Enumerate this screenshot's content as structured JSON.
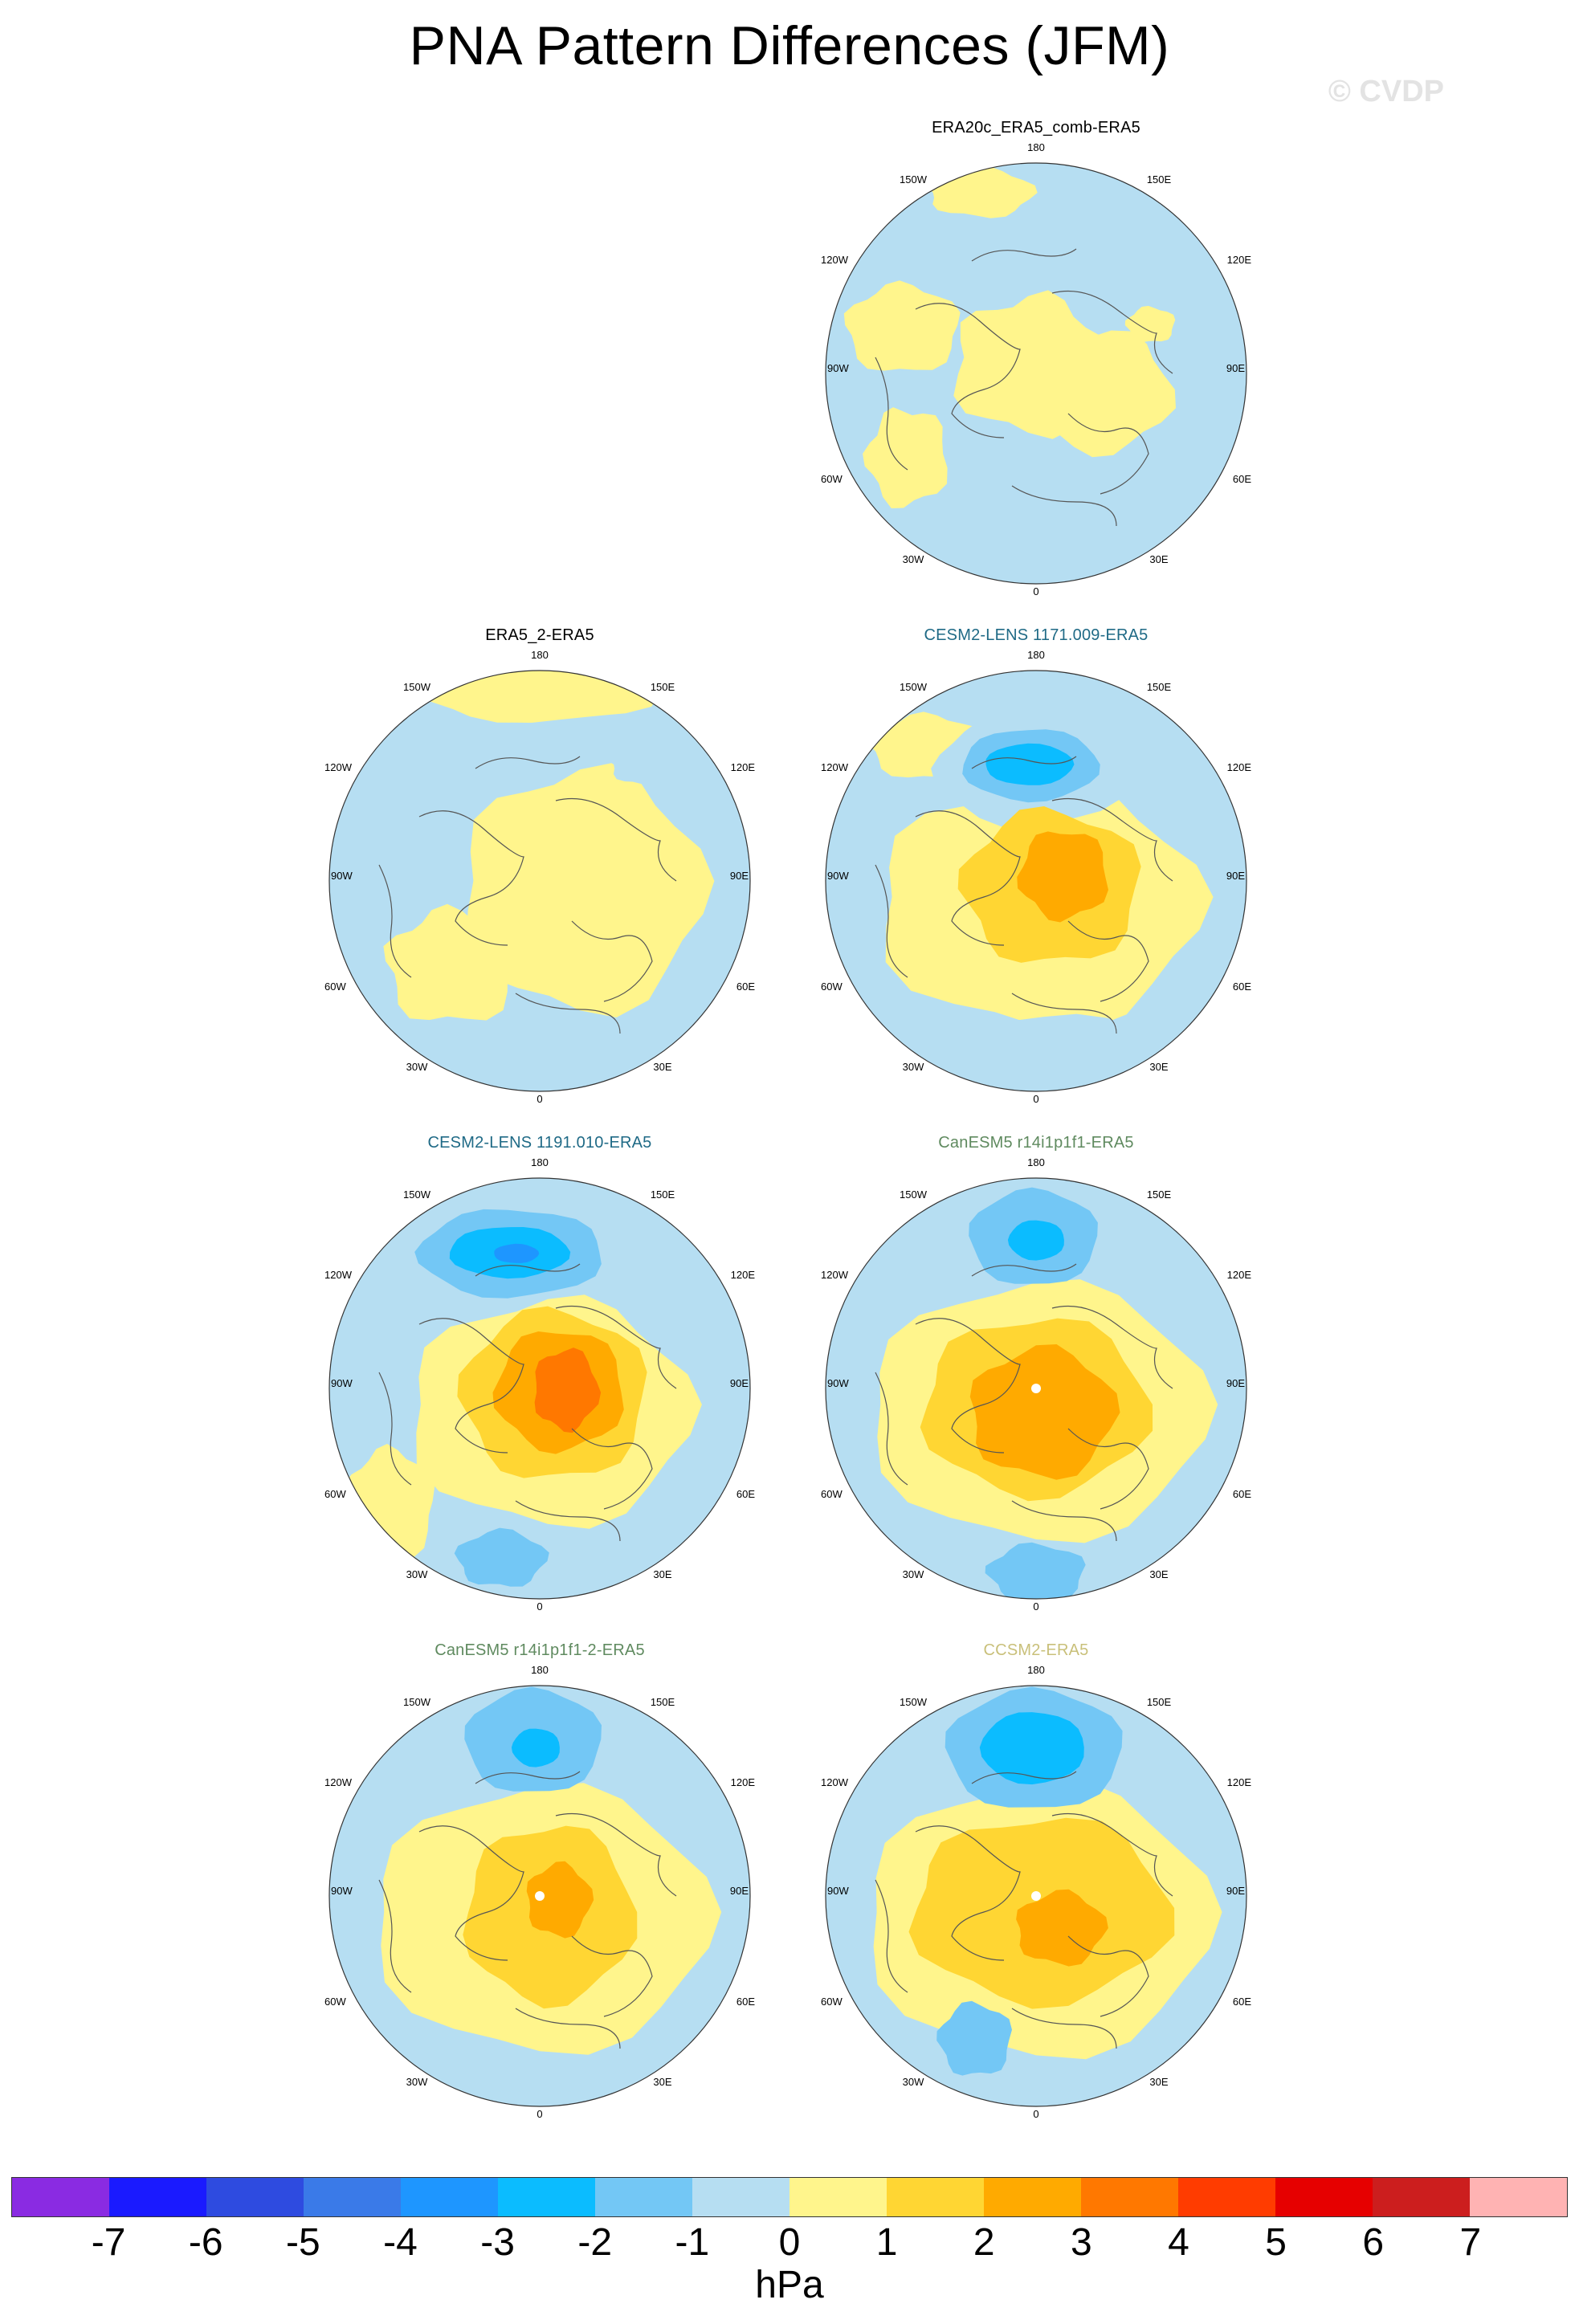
{
  "title": "PNA Pattern Differences (JFM)",
  "watermark": "© CVDP",
  "map_labels": {
    "top": "180",
    "bottom": "0",
    "upper_left": "150W",
    "upper_right": "150E",
    "mid_left_upper": "120W",
    "mid_right_upper": "120E",
    "left": "90W",
    "right": "90E",
    "mid_left_lower": "60W",
    "mid_right_lower": "60E",
    "lower_left": "30W",
    "lower_right": "30E"
  },
  "panels": [
    {
      "id": "p1",
      "title": "ERA20c_ERA5_comb-ERA5",
      "title_color": "#000000"
    },
    {
      "id": "p2",
      "title": "ERA5_2-ERA5",
      "title_color": "#000000"
    },
    {
      "id": "p3",
      "title": "CESM2-LENS 1171.009-ERA5",
      "title_color": "#1f6a86"
    },
    {
      "id": "p4",
      "title": "CESM2-LENS 1191.010-ERA5",
      "title_color": "#1f6a86"
    },
    {
      "id": "p5",
      "title": "CanESM5 r14i1p1f1-ERA5",
      "title_color": "#5f8a5f"
    },
    {
      "id": "p6",
      "title": "CanESM5 r14i1p1f1-2-ERA5",
      "title_color": "#5f8a5f"
    },
    {
      "id": "p7",
      "title": "CCSM2-ERA5",
      "title_color": "#c9c07a"
    }
  ],
  "colorbar": {
    "colors": [
      "#8a2be2",
      "#1a1aff",
      "#2e4be0",
      "#3a7ae8",
      "#1e96ff",
      "#0bbcff",
      "#73c7f5",
      "#b6def2",
      "#fff58c",
      "#ffd633",
      "#ffaa00",
      "#ff7800",
      "#ff3c00",
      "#e60000",
      "#cc1e1e",
      "#ffb3b3"
    ],
    "ticks": [
      "-7",
      "-6",
      "-5",
      "-4",
      "-3",
      "-2",
      "-1",
      "0",
      "1",
      "2",
      "3",
      "4",
      "5",
      "6",
      "7"
    ],
    "units": "hPa"
  }
}
